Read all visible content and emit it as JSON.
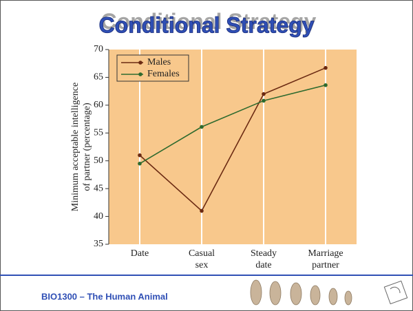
{
  "chart_data": {
    "type": "line",
    "title": "Conditional Strategy",
    "ylabel": [
      "Minimum acceptable intelligence",
      "of partner (percentage)"
    ],
    "categories": [
      "Date",
      "Casual sex",
      "Steady date",
      "Marriage partner"
    ],
    "series": [
      {
        "name": "Males",
        "color": "#6b2a12",
        "values": [
          51,
          41,
          62,
          66.7
        ]
      },
      {
        "name": "Females",
        "color": "#2e6a2e",
        "values": [
          49.5,
          56.1,
          60.8,
          63.6
        ]
      }
    ],
    "ylim": [
      35,
      70
    ],
    "yticks": [
      35,
      40,
      45,
      50,
      55,
      60,
      65,
      70
    ],
    "legend": "upper-left",
    "plot_background": "#f8c88c"
  },
  "footer": "BIO1300 – The Human Animal"
}
